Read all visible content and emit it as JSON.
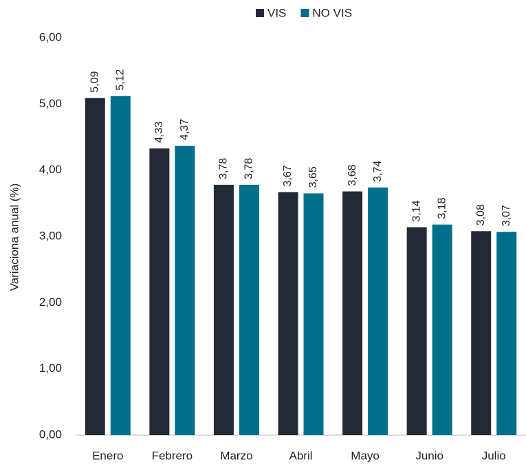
{
  "chart_data": {
    "type": "bar",
    "y_label": "Variaciona anual (%)",
    "categories": [
      "Enero",
      "Febrero",
      "Marzo",
      "Abril",
      "Mayo",
      "Junio",
      "Julio"
    ],
    "series": [
      {
        "name": "VIS",
        "color": "#232a35",
        "values": [
          5.09,
          4.33,
          3.78,
          3.67,
          3.68,
          3.14,
          3.08
        ],
        "value_labels": [
          "5,09",
          "4,33",
          "3,78",
          "3,67",
          "3,68",
          "3,14",
          "3,08"
        ]
      },
      {
        "name": "NO VIS",
        "color": "#00708a",
        "values": [
          5.12,
          4.37,
          3.78,
          3.65,
          3.74,
          3.18,
          3.07
        ],
        "value_labels": [
          "5,12",
          "4,37",
          "3,78",
          "3,65",
          "3,74",
          "3,18",
          "3,07"
        ]
      }
    ],
    "ylim": [
      0,
      6
    ],
    "yticks": [
      {
        "value": 0,
        "label": "0,00"
      },
      {
        "value": 1,
        "label": "1,00"
      },
      {
        "value": 2,
        "label": "2,00"
      },
      {
        "value": 3,
        "label": "3,00"
      },
      {
        "value": 4,
        "label": "4,00"
      },
      {
        "value": 5,
        "label": "5,00"
      },
      {
        "value": 6,
        "label": "6,00"
      }
    ],
    "grid": false,
    "legend": "top"
  }
}
